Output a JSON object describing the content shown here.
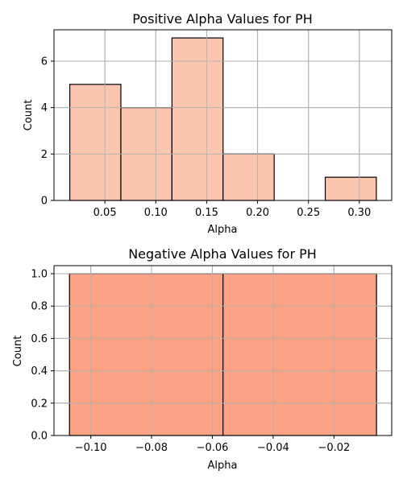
{
  "chart_data": [
    {
      "type": "bar",
      "title": "Positive Alpha Values for PH",
      "xlabel": "Alpha",
      "ylabel": "Count",
      "bin_edges": [
        0.0155,
        0.0657,
        0.1159,
        0.1661,
        0.2163,
        0.2665,
        0.3167
      ],
      "values": [
        5,
        4,
        7,
        2,
        0,
        1
      ],
      "xlim": [
        -0.0,
        0.3318
      ],
      "ylim": [
        0,
        7.35
      ],
      "xticks": [
        0.05,
        0.1,
        0.15,
        0.2,
        0.25,
        0.3
      ],
      "xtick_labels": [
        "0.05",
        "0.10",
        "0.15",
        "0.20",
        "0.25",
        "0.30"
      ],
      "yticks": [
        0,
        2,
        4,
        6
      ],
      "ytick_labels": [
        "0",
        "2",
        "4",
        "6"
      ],
      "bar_color": "#fcc5af",
      "edge_color": "#000000",
      "grid": true
    },
    {
      "type": "bar",
      "title": "Negative Alpha Values for PH",
      "xlabel": "Alpha",
      "ylabel": "Count",
      "bin_edges": [
        -0.107,
        -0.0565,
        -0.006
      ],
      "values": [
        1,
        1
      ],
      "xlim": [
        -0.1121,
        -0.001
      ],
      "ylim": [
        0,
        1.05
      ],
      "xticks": [
        -0.1,
        -0.08,
        -0.06,
        -0.04,
        -0.02
      ],
      "xtick_labels": [
        "−0.10",
        "−0.08",
        "−0.06",
        "−0.04",
        "−0.02"
      ],
      "yticks": [
        0.0,
        0.2,
        0.4,
        0.6,
        0.8,
        1.0
      ],
      "ytick_labels": [
        "0.0",
        "0.2",
        "0.4",
        "0.6",
        "0.8",
        "1.0"
      ],
      "bar_color": "#fca385",
      "edge_color": "#000000",
      "grid": true
    }
  ]
}
